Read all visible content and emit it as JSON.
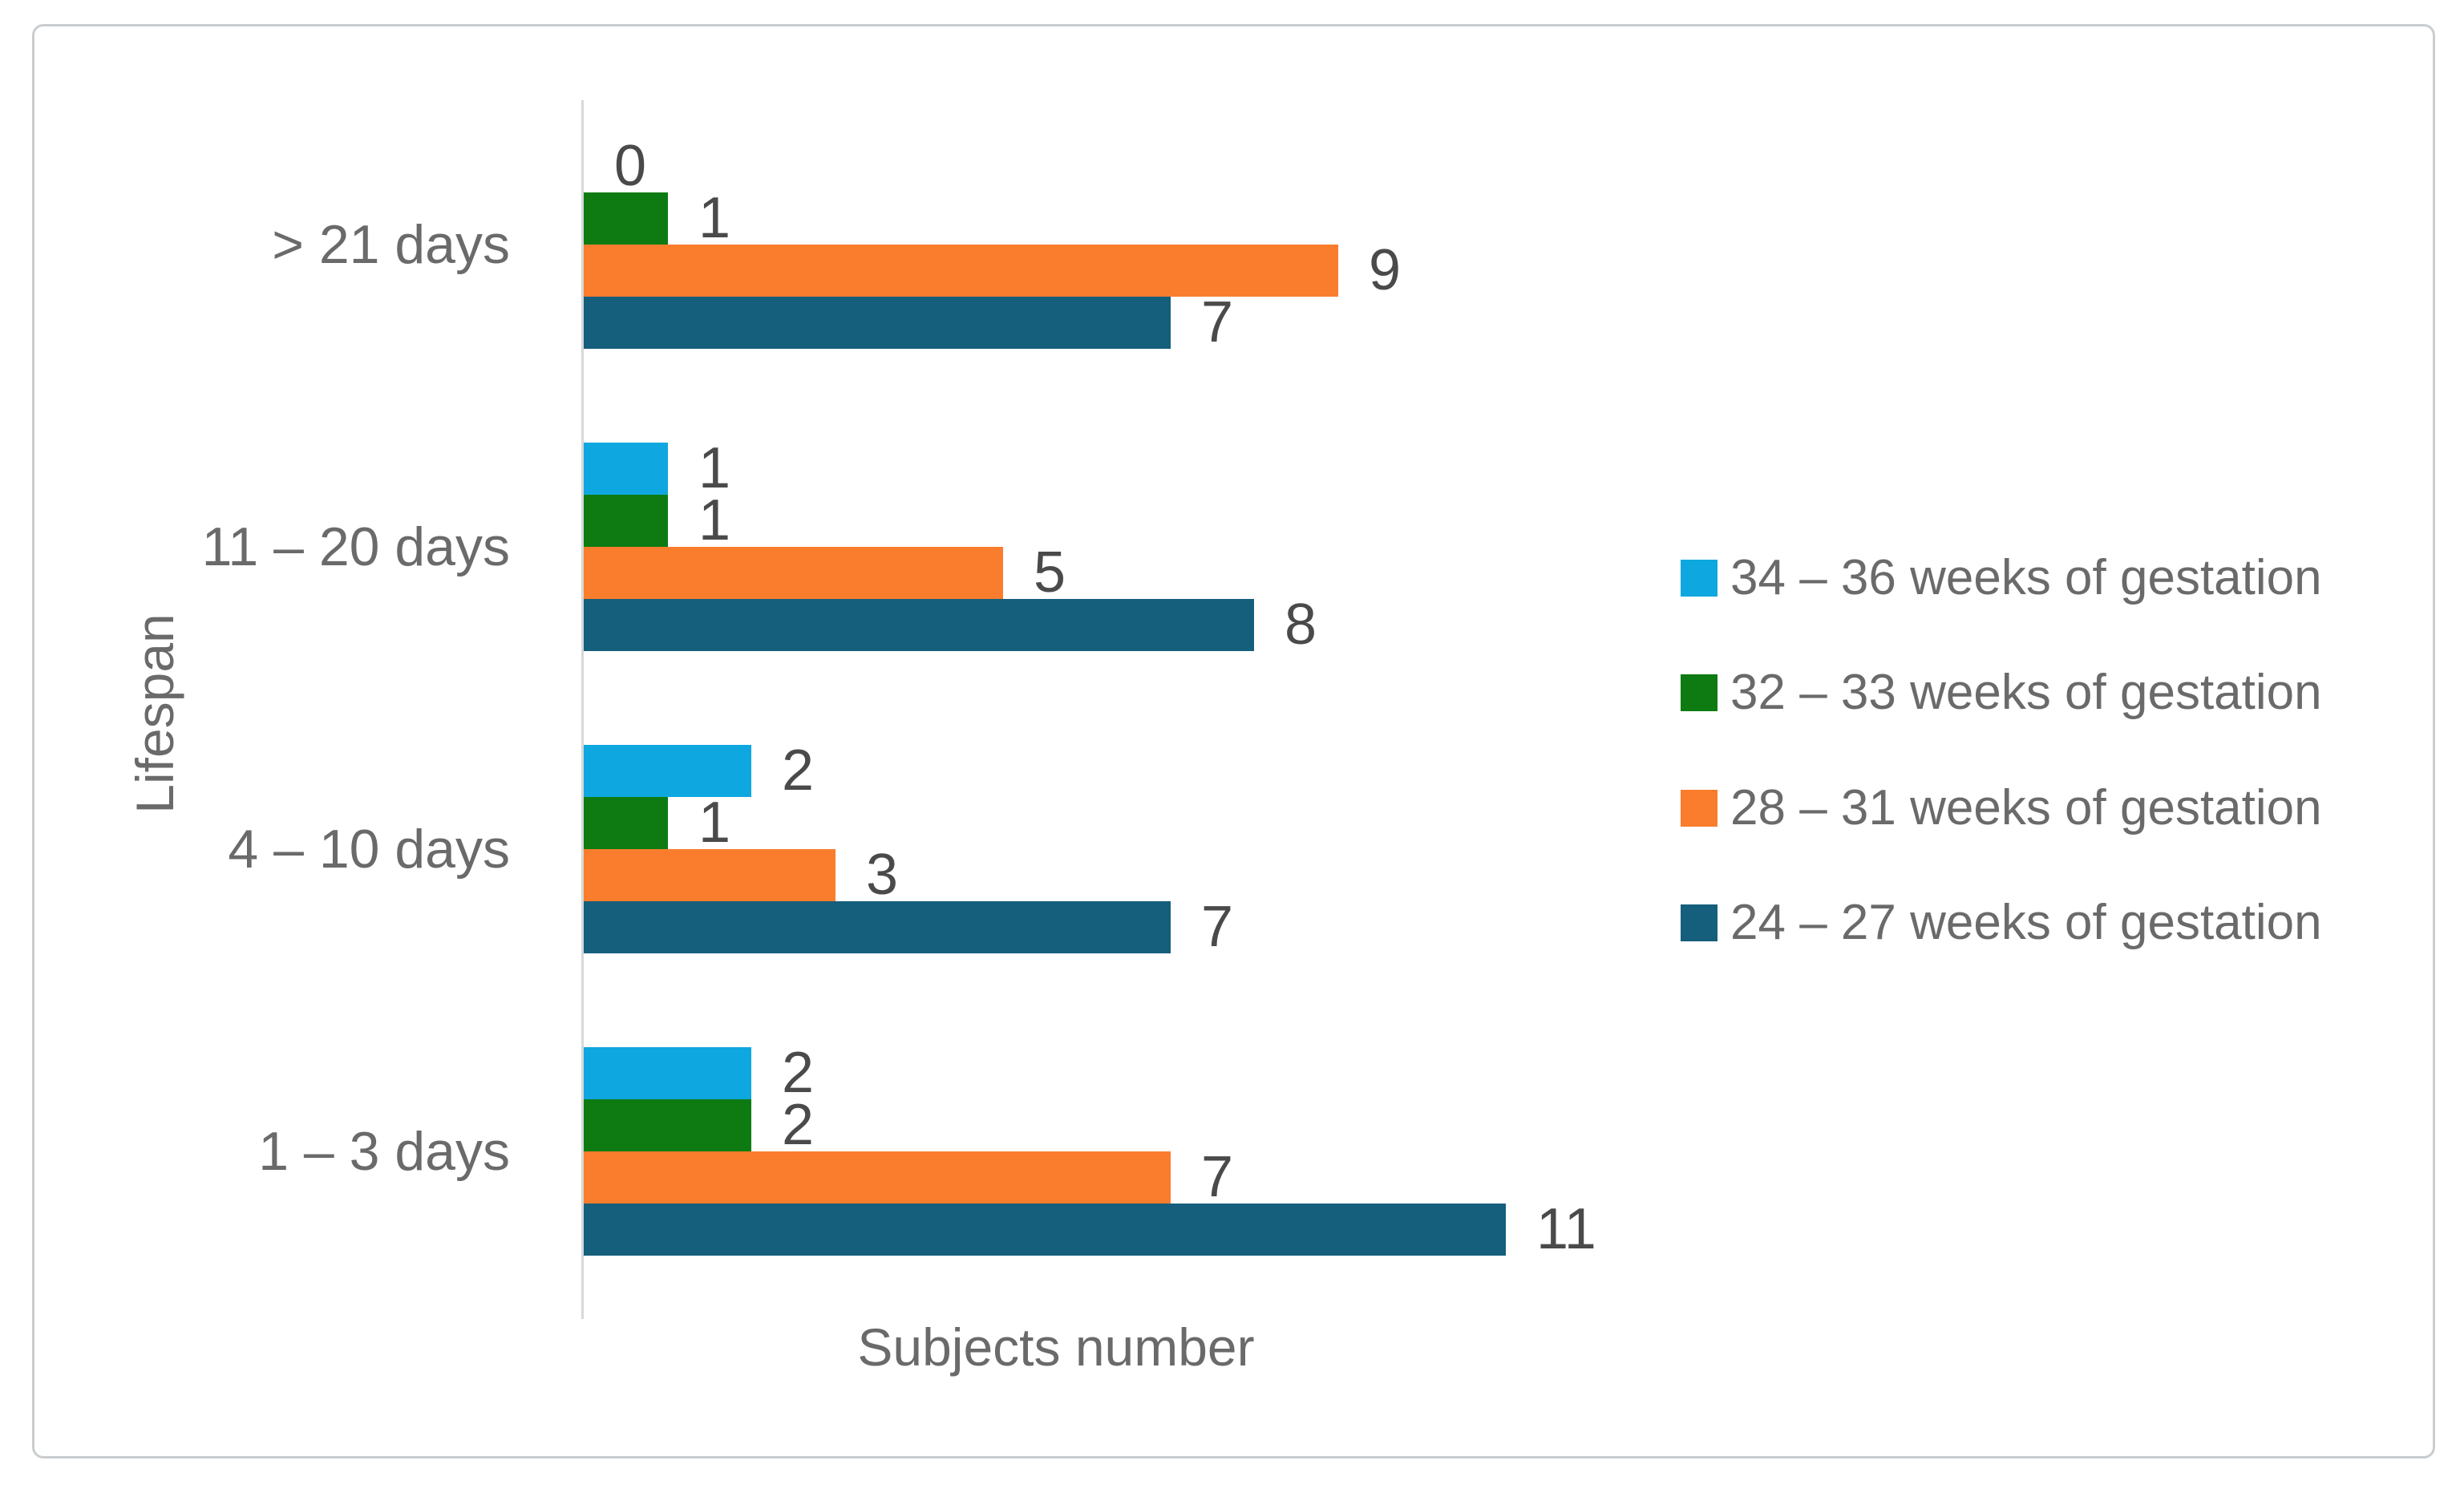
{
  "figure": {
    "x_axis_title": "Subjects number",
    "y_axis_title": "Lifespan"
  },
  "chart_data": {
    "type": "bar",
    "orientation": "horizontal",
    "title": "",
    "xlabel": "Subjects number",
    "ylabel": "Lifespan",
    "categories": [
      "> 21 days",
      "11 – 20 days",
      "4 – 10 days",
      "1 – 3 days"
    ],
    "series": [
      {
        "name": "34 – 36 weeks of gestation",
        "color": "#0fa7df",
        "values": [
          0,
          1,
          2,
          2
        ]
      },
      {
        "name": "32 – 33 weeks of gestation",
        "color": "#0d7b12",
        "values": [
          1,
          1,
          1,
          2
        ]
      },
      {
        "name": "28 – 31 weeks of gestation",
        "color": "#fa7d2d",
        "values": [
          9,
          5,
          3,
          7
        ]
      },
      {
        "name": "24 – 27 weeks of gestation",
        "color": "#155e7c",
        "values": [
          7,
          8,
          7,
          11
        ]
      }
    ],
    "xlim": [
      0,
      11
    ],
    "grid": false,
    "data_labels": true,
    "legend_position": "right"
  },
  "style_colors": {
    "frame_border": "#c9cdd0",
    "axis_line": "#d6d8d9",
    "data_label_text": "#4a4a4a",
    "axis_text": "#6a6a6a",
    "background": "#ffffff"
  }
}
